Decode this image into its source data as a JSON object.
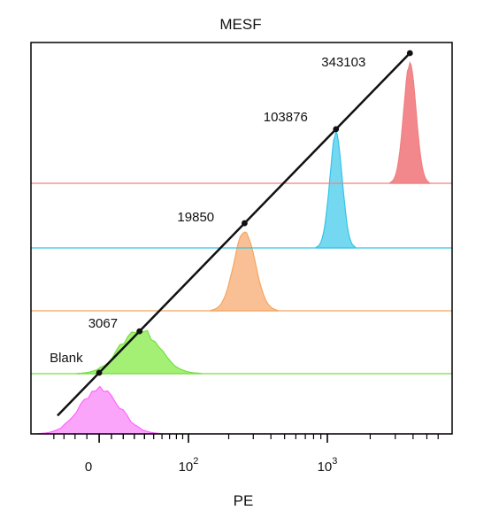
{
  "chart_data": {
    "type": "area",
    "title": "MESF",
    "xlabel": "PE",
    "x_scale": "biexponential (linear near 0, log above)",
    "x_ticks": [
      {
        "value": 0,
        "label": "0",
        "sup": ""
      },
      {
        "value": 100,
        "label": "10",
        "sup": "2"
      },
      {
        "value": 1000,
        "label": "10",
        "sup": "3"
      }
    ],
    "series": [
      {
        "color": "#ff66ff",
        "fill": "#f99af9",
        "peak_x": 0.5,
        "spread": "broad"
      },
      {
        "color": "#77dd44",
        "fill": "#99ee66",
        "peak_x": 35,
        "spread": "broad"
      },
      {
        "color": "#f5a55e",
        "fill": "#f9b98a",
        "peak_x": 260,
        "spread": "medium"
      },
      {
        "color": "#33c4e8",
        "fill": "#66d4ef",
        "peak_x": 1150,
        "spread": "narrow"
      },
      {
        "color": "#f08080",
        "fill": "#f17b7e",
        "peak_x": 3800,
        "spread": "narrow"
      }
    ],
    "calibration_line": {
      "color": "#111111",
      "points": [
        {
          "label": "Blank",
          "x": 0
        },
        {
          "label": "3067",
          "x": 35
        },
        {
          "label": "19850",
          "x": 260
        },
        {
          "label": "103876",
          "x": 1150
        },
        {
          "label": "343103",
          "x": 3800
        }
      ]
    },
    "grid": false,
    "legend": "none"
  }
}
